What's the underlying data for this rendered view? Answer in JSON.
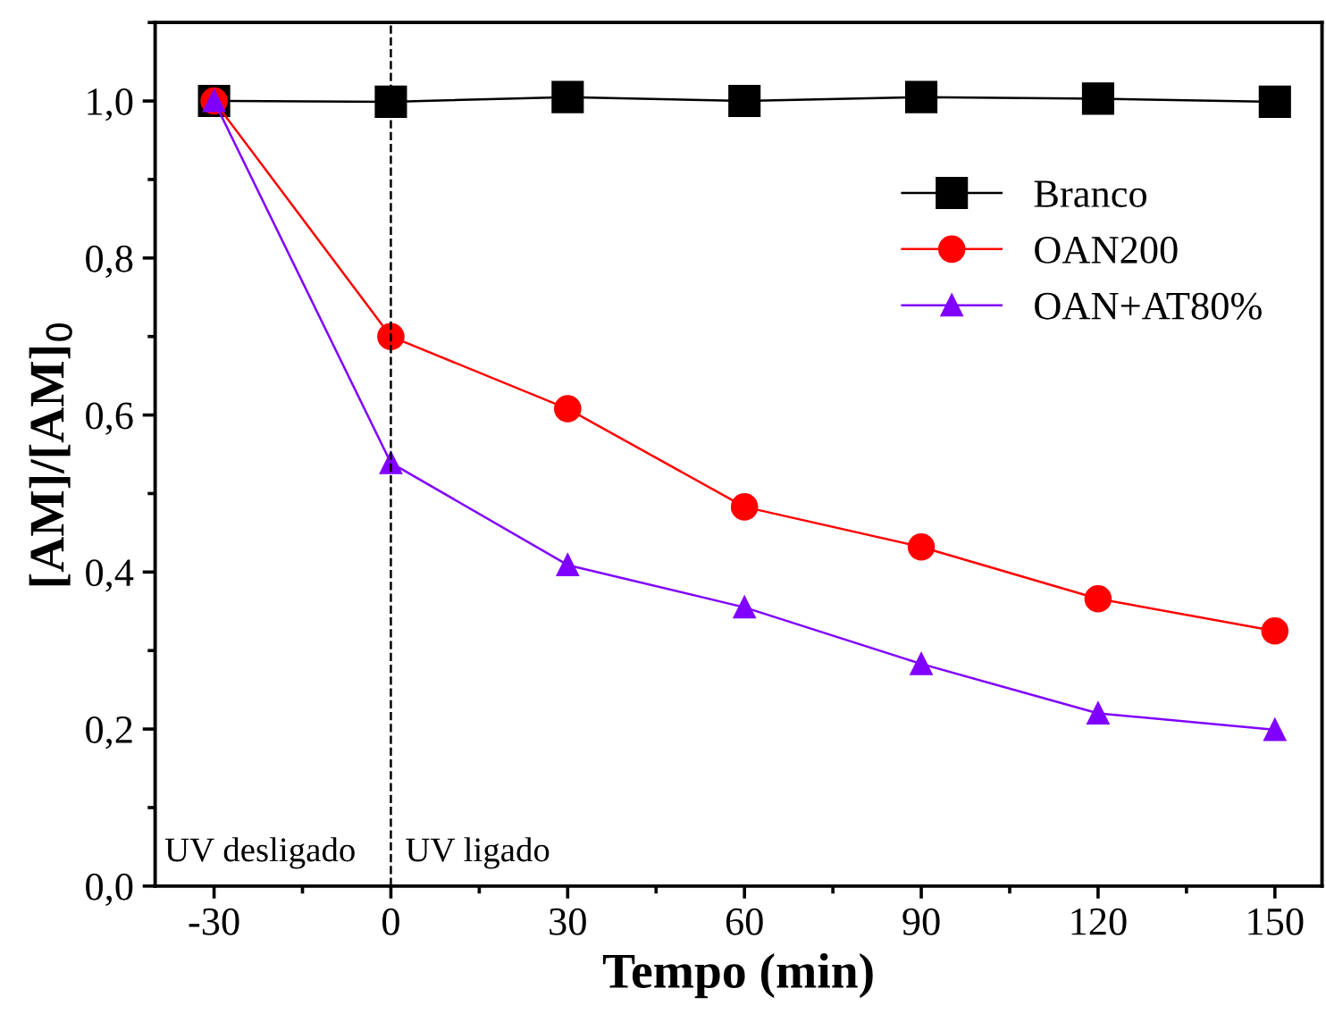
{
  "chart_data": {
    "type": "line",
    "xlabel": "Tempo (min)",
    "ylabel": "[AM]/[AM]$_{0}$",
    "x": [
      -30,
      0,
      30,
      60,
      90,
      120,
      150
    ],
    "series": [
      {
        "name": "Branco",
        "color": "#000000",
        "marker": "square",
        "values": [
          1.0,
          0.999,
          1.005,
          1.0,
          1.005,
          1.003,
          0.999
        ]
      },
      {
        "name": "OAN200",
        "color": "#ff0000",
        "marker": "circle",
        "values": [
          1.0,
          0.7,
          0.608,
          0.483,
          0.432,
          0.366,
          0.325
        ]
      },
      {
        "name": "OAN+AT80%",
        "color": "#8000ff",
        "marker": "triangle",
        "values": [
          1.0,
          0.539,
          0.409,
          0.355,
          0.283,
          0.22,
          0.199
        ]
      }
    ],
    "xlim": [
      -40,
      158
    ],
    "ylim": [
      0,
      1.1
    ],
    "xticks": [
      -30,
      0,
      30,
      60,
      90,
      120,
      150
    ],
    "yticks": [
      {
        "value": 0,
        "label": "0,0"
      },
      {
        "value": 0.2,
        "label": "0,2"
      },
      {
        "value": 0.4,
        "label": "0,4"
      },
      {
        "value": 0.6,
        "label": "0,6"
      },
      {
        "value": 0.8,
        "label": "0,8"
      },
      {
        "value": 1.0,
        "label": "1,0"
      }
    ],
    "ref_lines": [
      {
        "axis": "x",
        "value": 0,
        "color": "#000000",
        "line_style": "dashed"
      }
    ],
    "annotations": [
      "UV desligado",
      "UV ligado"
    ],
    "legend": "top right",
    "grid": false
  }
}
